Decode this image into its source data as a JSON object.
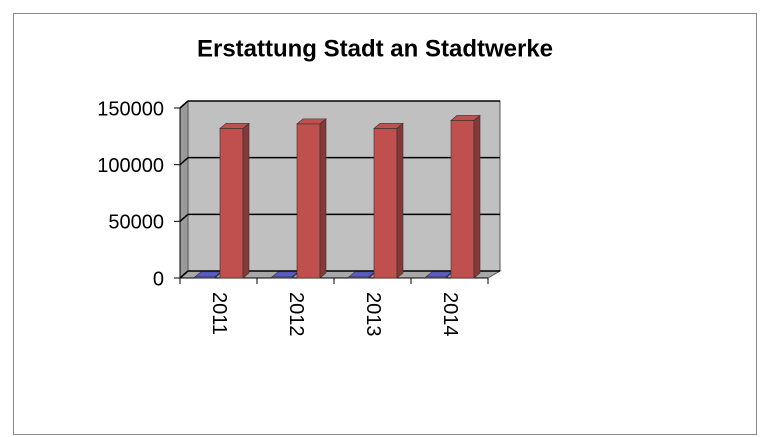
{
  "chart_data": {
    "type": "bar3d",
    "title": "Erstattung Stadt an Stadtwerke",
    "categories": [
      "2011",
      "2012",
      "2013",
      "2014"
    ],
    "series": [
      {
        "color": "#5b5bc8",
        "values": [
          1000,
          1000,
          1000,
          1000
        ]
      },
      {
        "color": "#c0504d",
        "values": [
          132000,
          136000,
          132000,
          139000
        ]
      }
    ],
    "ylim": [
      0,
      150000
    ],
    "yticks": [
      0,
      50000,
      100000,
      150000
    ],
    "grid": true
  }
}
